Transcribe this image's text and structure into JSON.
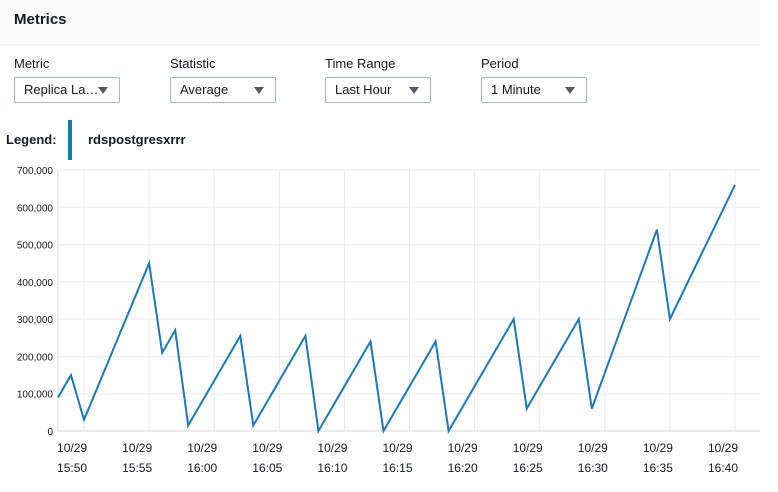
{
  "header": {
    "title": "Metrics"
  },
  "controls": [
    {
      "label": "Metric",
      "value": "Replica La…"
    },
    {
      "label": "Statistic",
      "value": "Average"
    },
    {
      "label": "Time Range",
      "value": "Last Hour"
    },
    {
      "label": "Period",
      "value": "1 Minute"
    }
  ],
  "legend": {
    "label": "Legend:",
    "series_name": "rdspostgresxrrr",
    "color": "#1f77b4"
  },
  "chart_data": {
    "type": "line",
    "title": "",
    "xlabel": "",
    "ylabel": "",
    "ylim": [
      0,
      700000
    ],
    "yticks": [
      "700,000",
      "600,000",
      "500,000",
      "400,000",
      "300,000",
      "200,000",
      "100,000",
      "0"
    ],
    "xticks": [
      {
        "date": "10/29",
        "time": "15:50"
      },
      {
        "date": "10/29",
        "time": "15:55"
      },
      {
        "date": "10/29",
        "time": "16:00"
      },
      {
        "date": "10/29",
        "time": "16:05"
      },
      {
        "date": "10/29",
        "time": "16:10"
      },
      {
        "date": "10/29",
        "time": "16:15"
      },
      {
        "date": "10/29",
        "time": "16:20"
      },
      {
        "date": "10/29",
        "time": "16:25"
      },
      {
        "date": "10/29",
        "time": "16:30"
      },
      {
        "date": "10/29",
        "time": "16:35"
      },
      {
        "date": "10/29",
        "time": "16:40"
      }
    ],
    "x_range": [
      "15:48",
      "16:40"
    ],
    "grid": true,
    "series": [
      {
        "name": "rdspostgresxrrr",
        "color": "#1f77b4",
        "points": [
          [
            "15:48",
            90000
          ],
          [
            "15:49",
            150000
          ],
          [
            "15:50",
            30000
          ],
          [
            "15:55",
            450000
          ],
          [
            "15:56",
            210000
          ],
          [
            "15:57",
            270000
          ],
          [
            "15:58",
            15000
          ],
          [
            "16:02",
            255000
          ],
          [
            "16:03",
            15000
          ],
          [
            "16:07",
            255000
          ],
          [
            "16:08",
            0
          ],
          [
            "16:12",
            240000
          ],
          [
            "16:13",
            0
          ],
          [
            "16:17",
            240000
          ],
          [
            "16:18",
            0
          ],
          [
            "16:23",
            300000
          ],
          [
            "16:24",
            60000
          ],
          [
            "16:28",
            300000
          ],
          [
            "16:29",
            60000
          ],
          [
            "16:34",
            540000
          ],
          [
            "16:35",
            300000
          ],
          [
            "16:40",
            660000
          ]
        ]
      }
    ]
  }
}
